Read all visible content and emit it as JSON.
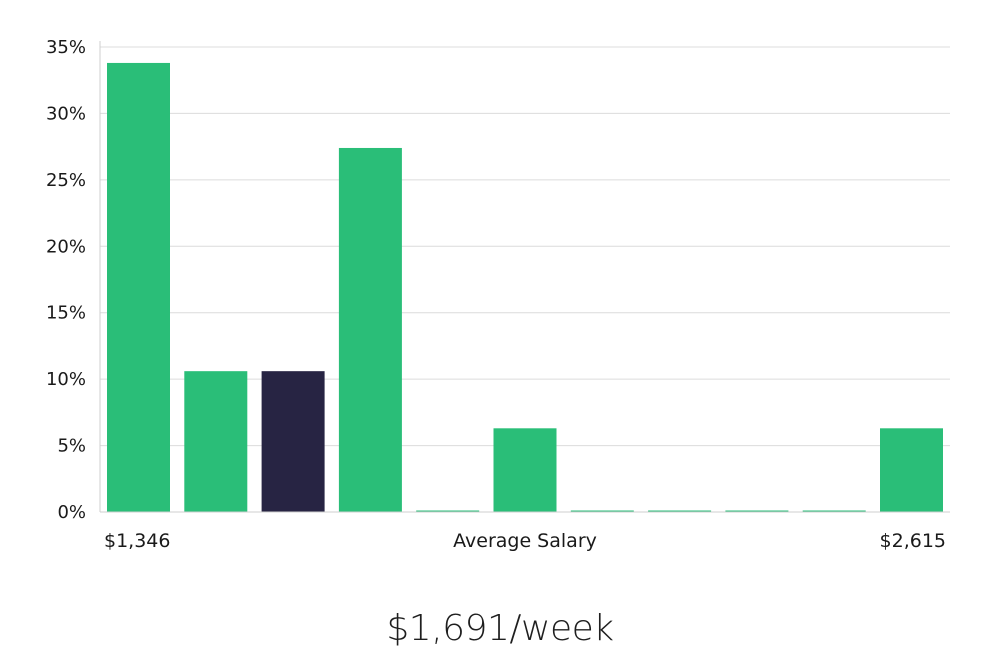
{
  "chart_data": {
    "type": "bar",
    "xlabel": "Average Salary",
    "x_min_label": "$1,346",
    "x_max_label": "$2,615",
    "ylim": [
      0,
      35
    ],
    "yticks": [
      0,
      5,
      10,
      15,
      20,
      25,
      30,
      35
    ],
    "ytick_labels": [
      "0%",
      "5%",
      "10%",
      "15%",
      "20%",
      "25%",
      "30%",
      "35%"
    ],
    "grid": true,
    "bins": 11,
    "values": [
      33.8,
      10.6,
      10.6,
      27.4,
      0,
      6.3,
      0,
      0,
      0,
      0,
      6.3
    ],
    "highlight_index": 2,
    "colors": {
      "bar": "#2abe78",
      "highlight": "#272443"
    }
  },
  "headline": "$1,691/week"
}
